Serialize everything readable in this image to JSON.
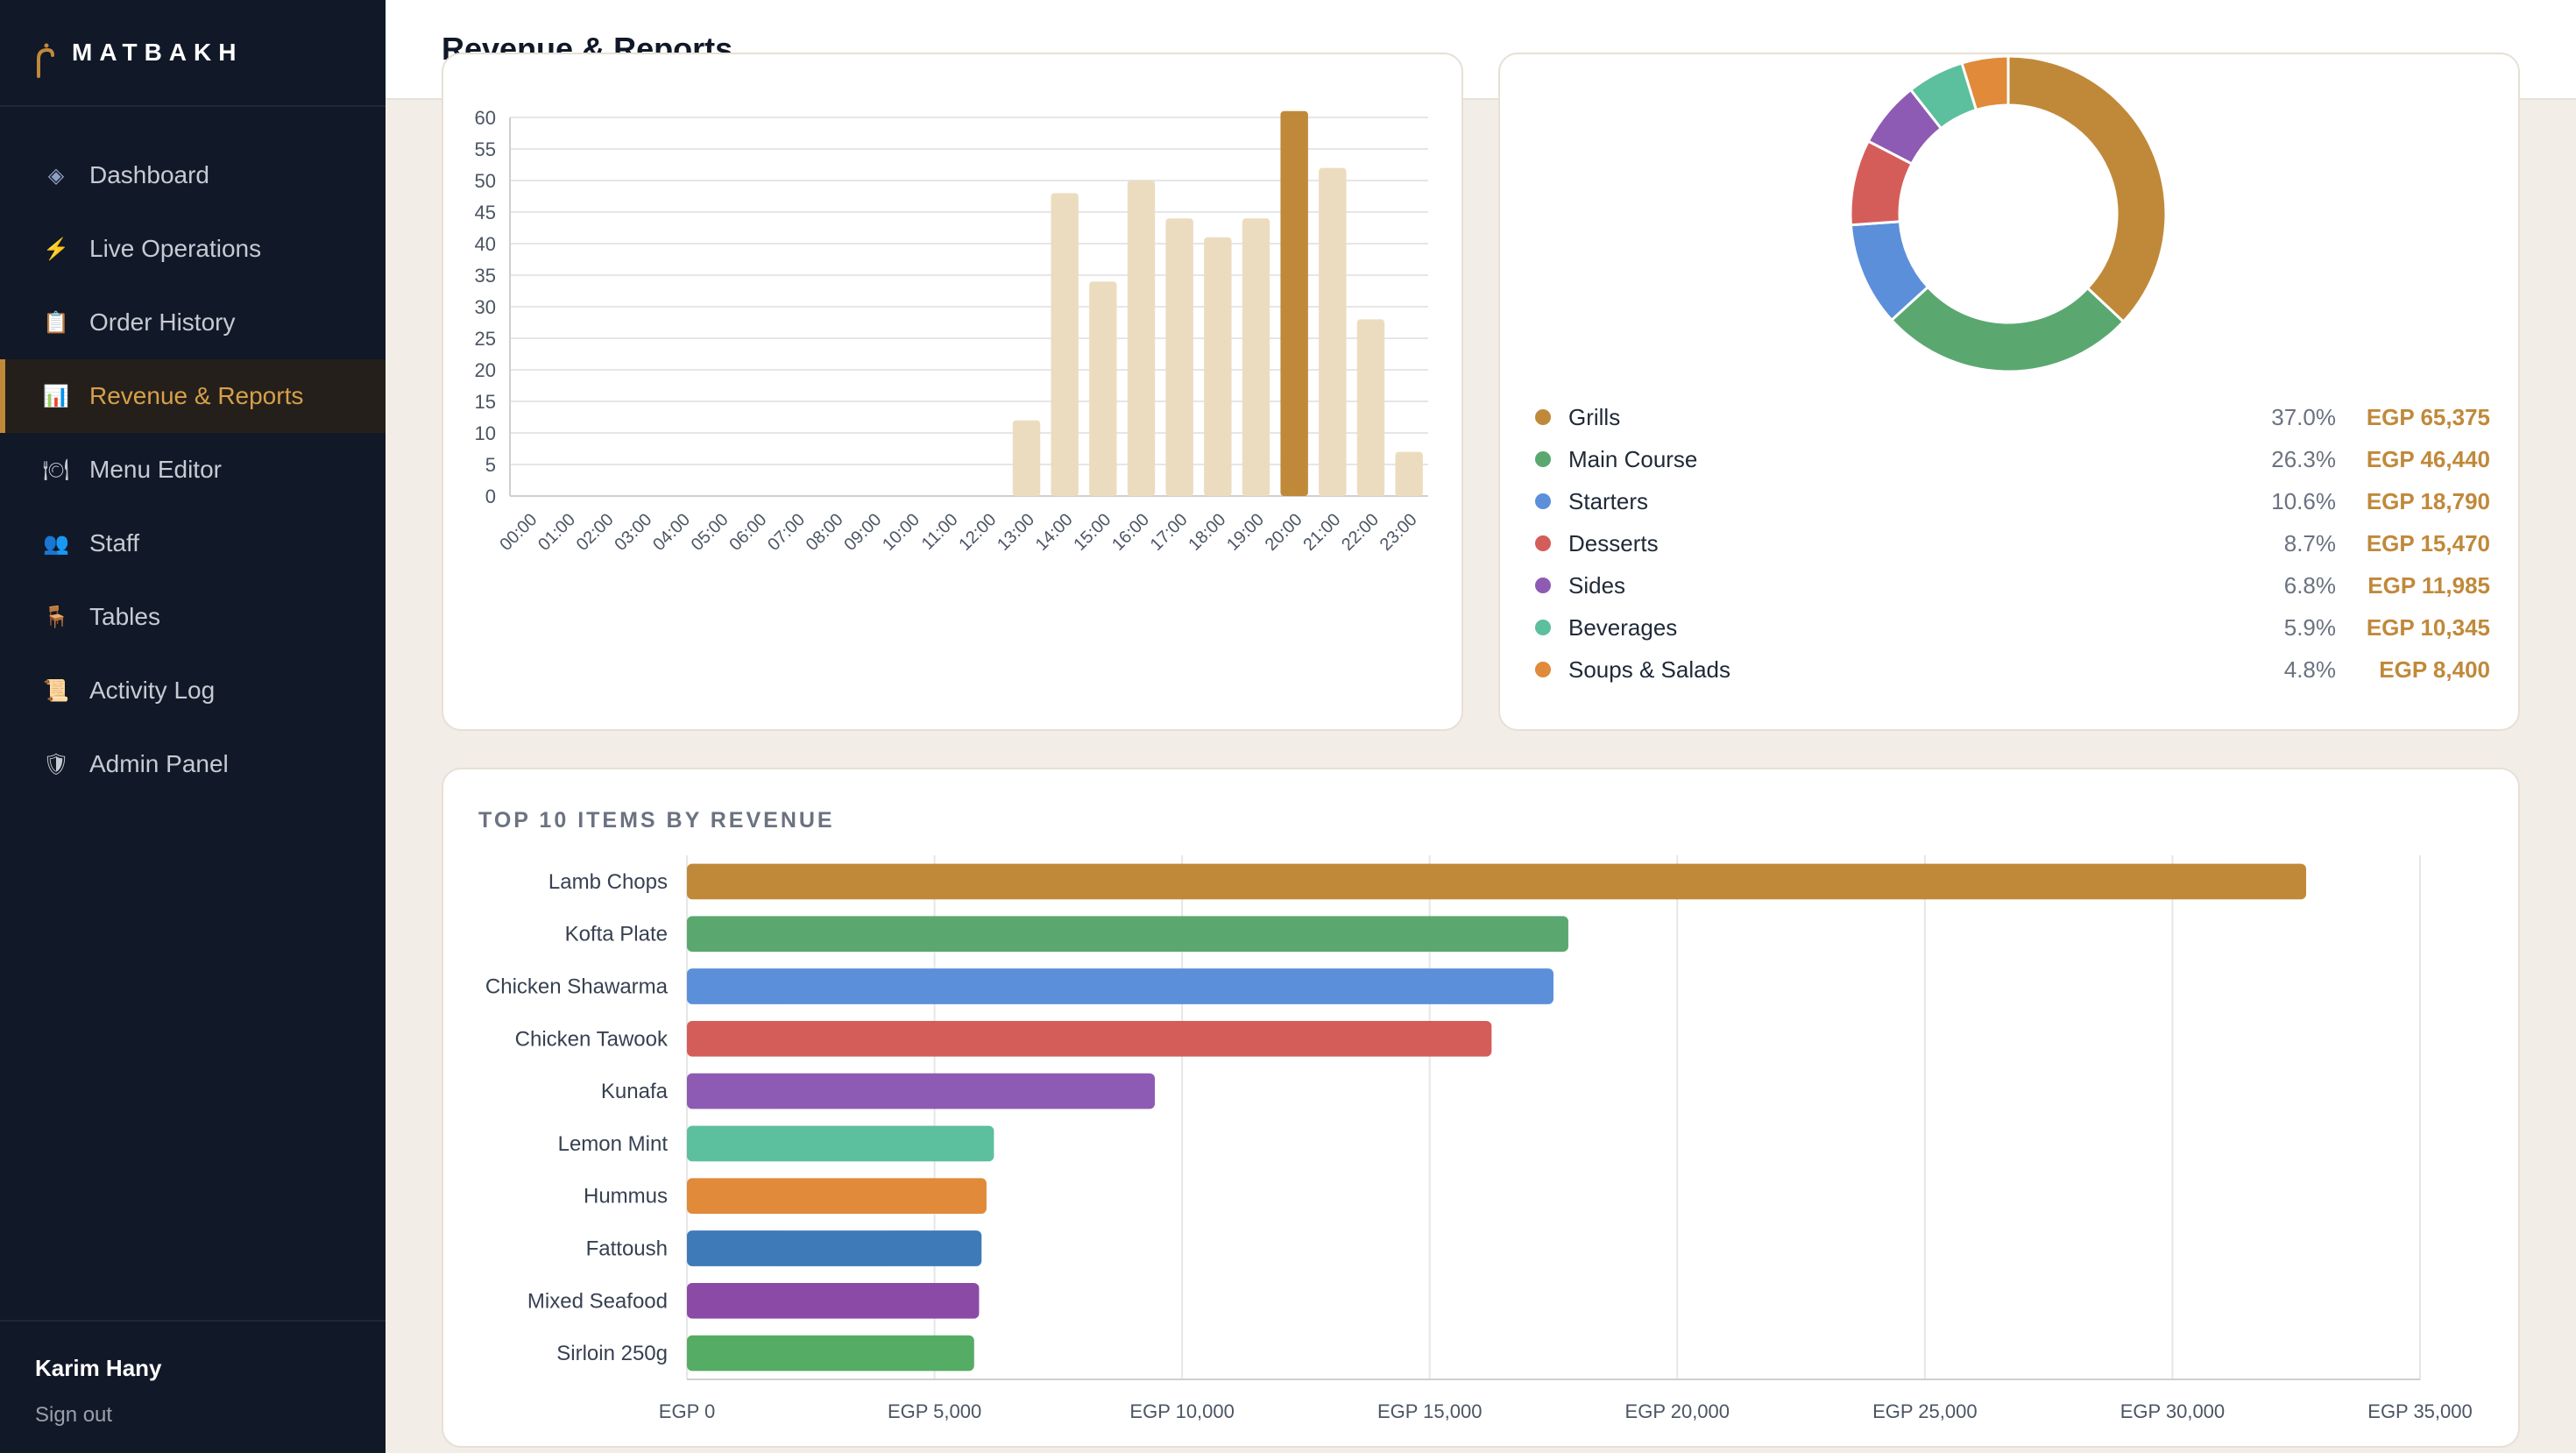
{
  "app": {
    "brand": "MATBAKH",
    "page_title": "Revenue & Reports"
  },
  "sidebar": {
    "items": [
      {
        "label": "Dashboard",
        "icon": "diamond-icon",
        "glyph": "◈",
        "active": false
      },
      {
        "label": "Live Operations",
        "icon": "lightning-icon",
        "glyph": "⚡",
        "active": false
      },
      {
        "label": "Order History",
        "icon": "clipboard-icon",
        "glyph": "📋",
        "active": false
      },
      {
        "label": "Revenue & Reports",
        "icon": "bar-chart-icon",
        "glyph": "📊",
        "active": true
      },
      {
        "label": "Menu Editor",
        "icon": "plate-icon",
        "glyph": "🍽",
        "active": false
      },
      {
        "label": "Staff",
        "icon": "people-icon",
        "glyph": "👥",
        "active": false
      },
      {
        "label": "Tables",
        "icon": "chair-icon",
        "glyph": "🪑",
        "active": false
      },
      {
        "label": "Activity Log",
        "icon": "scroll-icon",
        "glyph": "📜",
        "active": false
      },
      {
        "label": "Admin Panel",
        "icon": "shield-icon",
        "glyph": "🛡",
        "active": false
      }
    ],
    "user_name": "Karim Hany",
    "sign_out": "Sign out"
  },
  "colors": {
    "accent": "#c0893a",
    "sidebar_bg": "#111827",
    "hour_bar": "#ecdcbf",
    "hour_bar_peak": "#c0893a"
  },
  "chart_data": [
    {
      "type": "bar",
      "categories": [
        "00:00",
        "01:00",
        "02:00",
        "03:00",
        "04:00",
        "05:00",
        "06:00",
        "07:00",
        "08:00",
        "09:00",
        "10:00",
        "11:00",
        "12:00",
        "13:00",
        "14:00",
        "15:00",
        "16:00",
        "17:00",
        "18:00",
        "19:00",
        "20:00",
        "21:00",
        "22:00",
        "23:00"
      ],
      "values": [
        0,
        0,
        0,
        0,
        0,
        0,
        0,
        0,
        0,
        0,
        0,
        0,
        0,
        12,
        48,
        34,
        50,
        44,
        41,
        44,
        61,
        52,
        28,
        7
      ],
      "ylim": [
        0,
        60
      ],
      "yticks": [
        0,
        5,
        10,
        15,
        20,
        25,
        30,
        35,
        40,
        45,
        50,
        55,
        60
      ],
      "highlight_index": 20,
      "grid": true
    },
    {
      "type": "pie",
      "donut": true,
      "labels": [
        "Grills",
        "Main Course",
        "Starters",
        "Desserts",
        "Sides",
        "Beverages",
        "Soups & Salads"
      ],
      "percents": [
        "37.0%",
        "26.3%",
        "10.6%",
        "8.7%",
        "6.8%",
        "5.9%",
        "4.8%"
      ],
      "values": [
        65375,
        46440,
        18790,
        15470,
        11985,
        10345,
        8400
      ],
      "value_labels": [
        "EGP 65,375",
        "EGP 46,440",
        "EGP 18,790",
        "EGP 15,470",
        "EGP 11,985",
        "EGP 10,345",
        "EGP 8,400"
      ],
      "colors": [
        "#c0893a",
        "#5aa870",
        "#5b8fd9",
        "#d45d5a",
        "#8e5bb4",
        "#5cbf9e",
        "#e08a3a"
      ]
    },
    {
      "type": "bar",
      "orientation": "horizontal",
      "title": "TOP 10 ITEMS BY REVENUE",
      "categories": [
        "Lamb Chops",
        "Kofta Plate",
        "Chicken Shawarma",
        "Chicken Tawook",
        "Kunafa",
        "Lemon Mint",
        "Hummus",
        "Fattoush",
        "Mixed Seafood",
        "Sirloin 250g"
      ],
      "values": [
        32700,
        17800,
        17500,
        16250,
        9450,
        6200,
        6050,
        5950,
        5900,
        5800
      ],
      "colors": [
        "#c0893a",
        "#5aa870",
        "#5b8fd9",
        "#d45d5a",
        "#8e5bb4",
        "#5cbf9e",
        "#e08a3a",
        "#3f7ab8",
        "#8b4aa6",
        "#54ac65"
      ],
      "xlim": [
        0,
        35000
      ],
      "xticks": [
        0,
        5000,
        10000,
        15000,
        20000,
        25000,
        30000,
        35000
      ],
      "xtick_labels": [
        "EGP 0",
        "EGP 5,000",
        "EGP 10,000",
        "EGP 15,000",
        "EGP 20,000",
        "EGP 25,000",
        "EGP 30,000",
        "EGP 35,000"
      ],
      "grid": true
    }
  ]
}
